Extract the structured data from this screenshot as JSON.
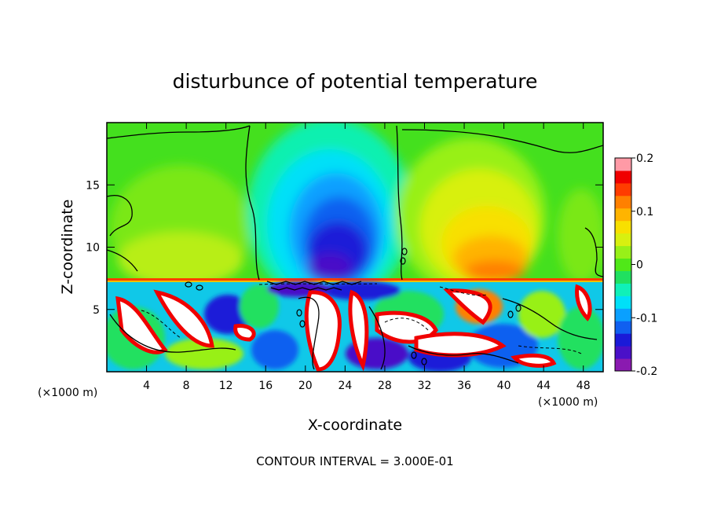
{
  "chart_data": {
    "type": "heatmap",
    "title": "disturbunce of potential temperature",
    "xlabel": "X-coordinate",
    "ylabel": "Z-coordinate",
    "x_unit_left": "(×1000 m)",
    "x_unit_right": "(×1000 m)",
    "x_ticks": [
      "4",
      "8",
      "12",
      "16",
      "20",
      "24",
      "28",
      "32",
      "36",
      "40",
      "44",
      "48"
    ],
    "x_tick_values": [
      4,
      8,
      12,
      16,
      20,
      24,
      28,
      32,
      36,
      40,
      44,
      48
    ],
    "y_ticks": [
      "5",
      "10",
      "15"
    ],
    "y_tick_values": [
      5,
      10,
      15
    ],
    "xlim": [
      0,
      50
    ],
    "ylim": [
      0,
      20
    ],
    "footer": "CONTOUR INTERVAL = 3.000E-01",
    "colorbar": {
      "range": [
        -0.2,
        0.2
      ],
      "tick_labels": [
        "0.2",
        "0.1",
        "0",
        "-0.1",
        "-0.2"
      ],
      "tick_values": [
        0.2,
        0.1,
        0,
        -0.1,
        -0.2
      ],
      "colors": [
        "#8a1ab0",
        "#4a10c8",
        "#1a1ad8",
        "#1060f0",
        "#0aa0ff",
        "#00e0f8",
        "#10f0b8",
        "#20e060",
        "#50e818",
        "#98f018",
        "#d8f010",
        "#f8e000",
        "#ffb400",
        "#ff8000",
        "#ff3c00",
        "#f00000",
        "#ff9aa6"
      ]
    }
  }
}
